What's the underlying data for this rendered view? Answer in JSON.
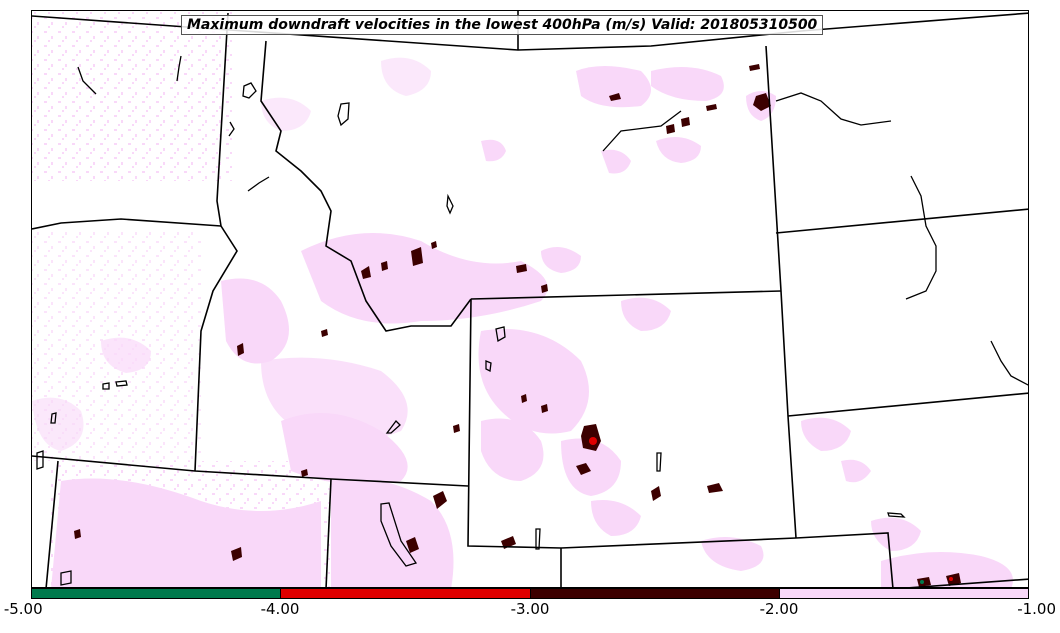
{
  "title": "Maximum downdraft velocities in the lowest 400hPa (m/s) Valid: 201805310500",
  "colorbar": {
    "ticks": [
      "-5.00",
      "-4.00",
      "-3.00",
      "-2.00",
      "-1.00"
    ],
    "bins": [
      {
        "from": -5,
        "to": -4,
        "color": "#007a4d"
      },
      {
        "from": -4,
        "to": -3,
        "color": "#e00000"
      },
      {
        "from": -3,
        "to": -2,
        "color": "#3c0000"
      },
      {
        "from": -2,
        "to": -1,
        "color": "#f9d8f9"
      }
    ]
  },
  "colors": {
    "light_fill": "#f9d8f9",
    "dark_fill": "#3c0000",
    "red_fill": "#e00000",
    "green_fill": "#007a4d",
    "boundary": "#000000"
  }
}
